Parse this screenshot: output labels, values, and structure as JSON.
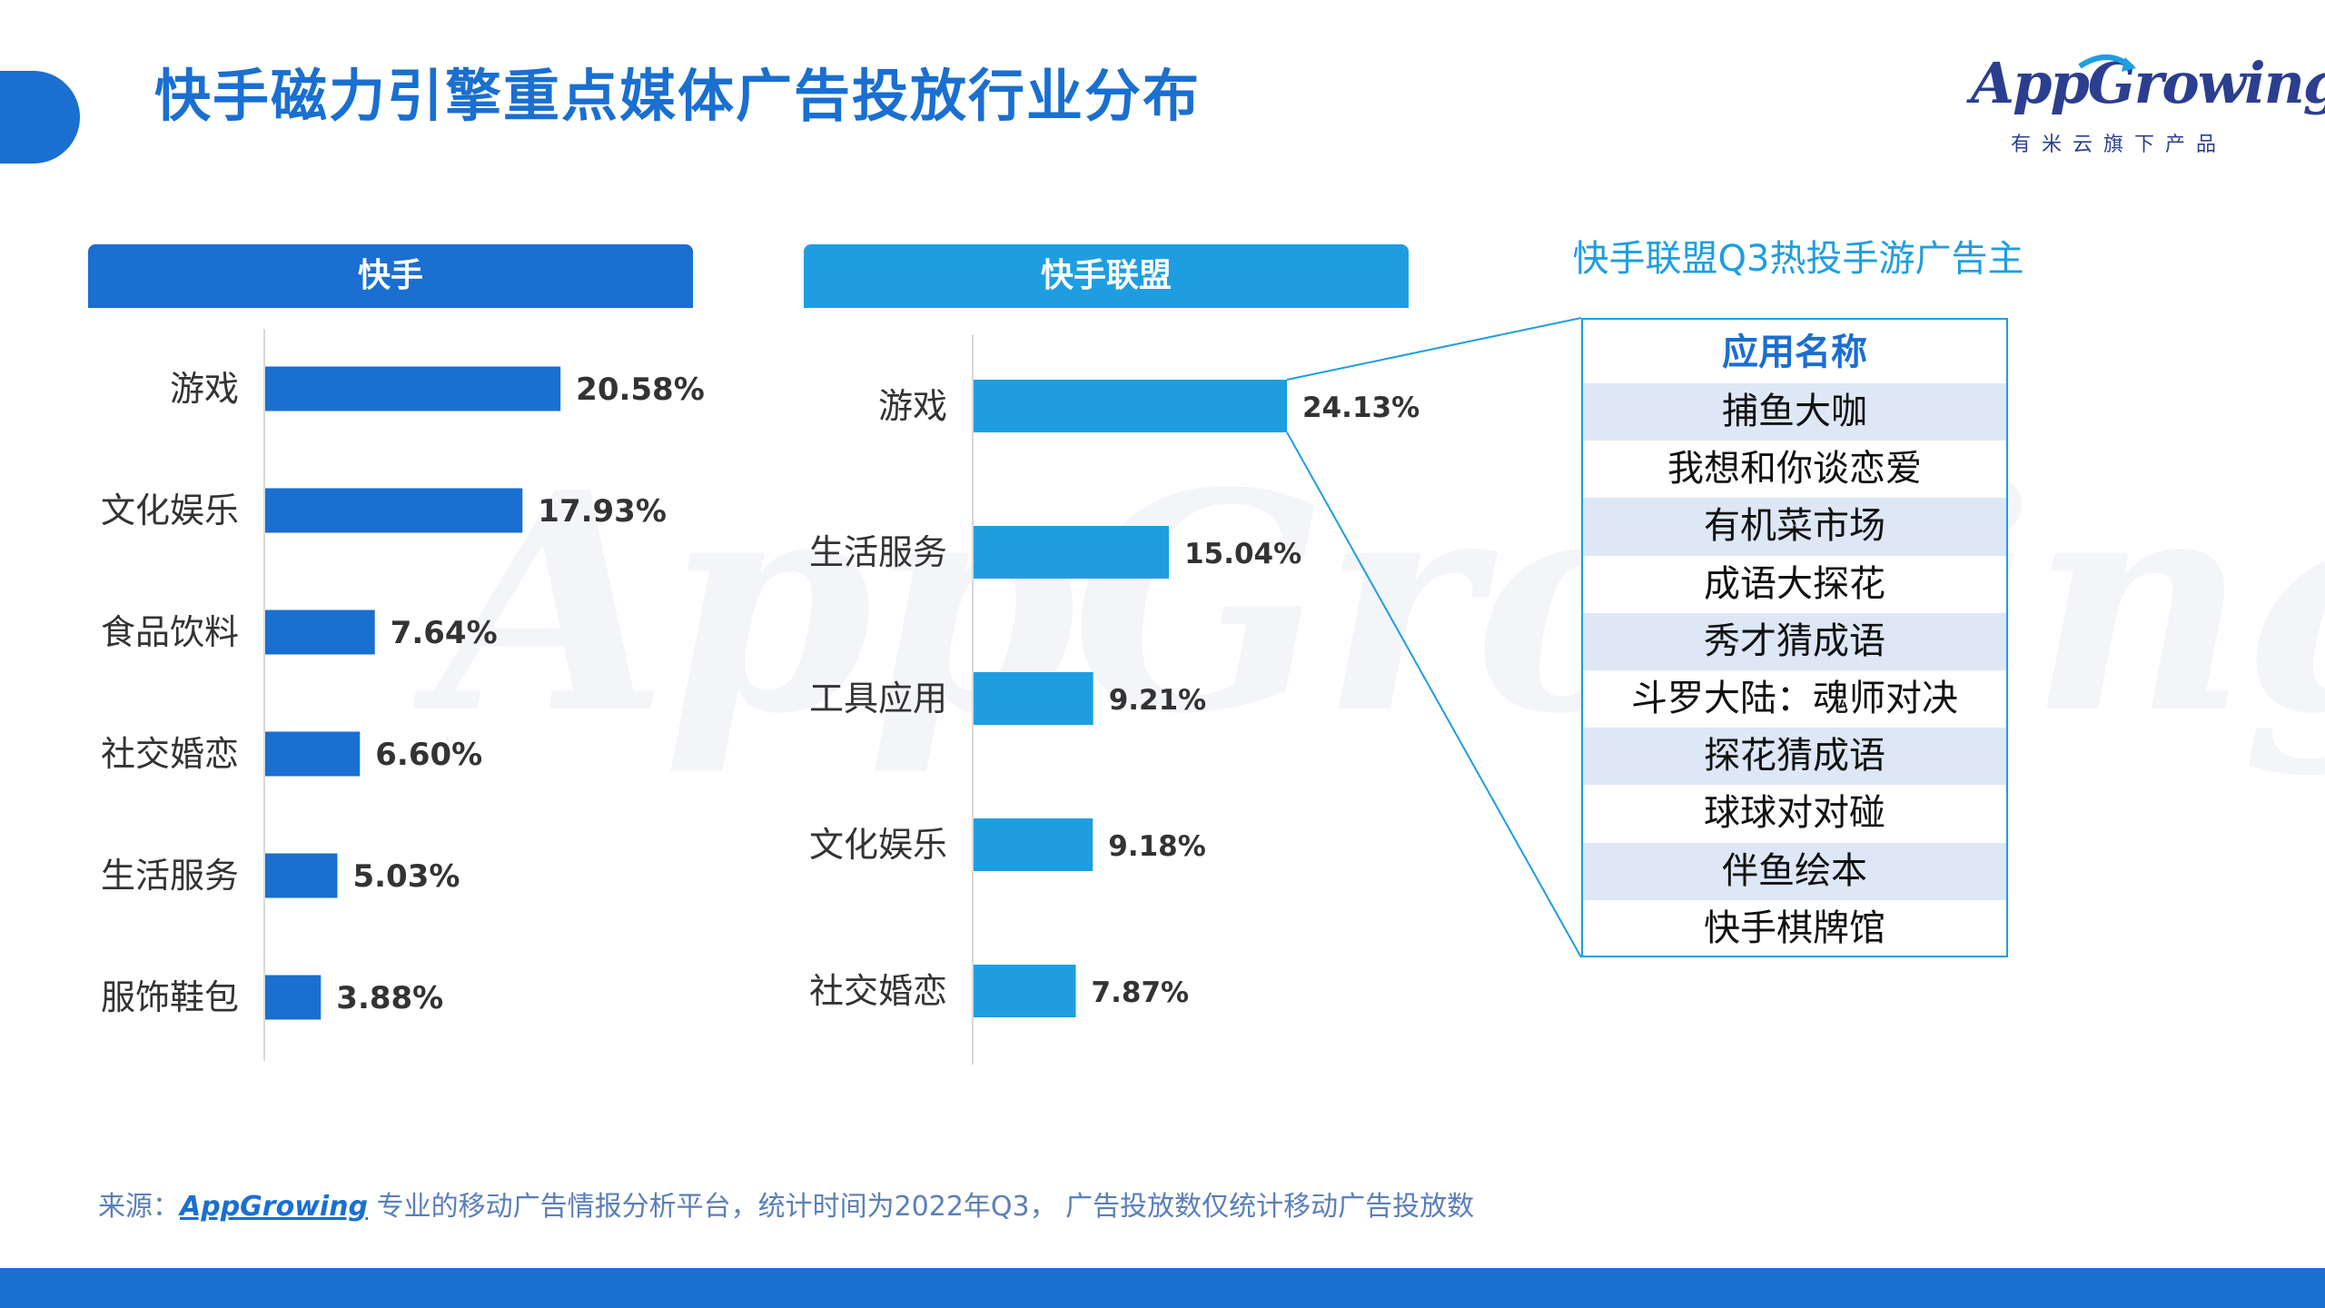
{
  "title": "快手磁力引擎重点媒体广告投放行业分布",
  "logo": {
    "wordmark": "AppGrowing",
    "subtitle": "有米云旗下产品"
  },
  "watermark": "AppGrowing",
  "colors": {
    "primary": "#1a6fd0",
    "secondary": "#1e9ee0",
    "table_alt": "#dde7f5"
  },
  "panels": {
    "kuaishou": {
      "header": "快手"
    },
    "lianmeng": {
      "header": "快手联盟"
    }
  },
  "chart_data": [
    {
      "type": "bar",
      "orientation": "horizontal",
      "title": "快手",
      "categories": [
        "游戏",
        "文化娱乐",
        "食品饮料",
        "社交婚恋",
        "生活服务",
        "服饰鞋包"
      ],
      "values": [
        20.58,
        17.93,
        7.64,
        6.6,
        5.03,
        3.88
      ],
      "labels": [
        "20.58%",
        "17.93%",
        "7.64%",
        "6.60%",
        "5.03%",
        "3.88%"
      ],
      "unit": "%",
      "color": "#1a6fd0"
    },
    {
      "type": "bar",
      "orientation": "horizontal",
      "title": "快手联盟",
      "categories": [
        "游戏",
        "生活服务",
        "工具应用",
        "文化娱乐",
        "社交婚恋"
      ],
      "values": [
        24.13,
        15.04,
        9.21,
        9.18,
        7.87
      ],
      "labels": [
        "24.13%",
        "15.04%",
        "9.21%",
        "9.18%",
        "7.87%"
      ],
      "unit": "%",
      "color": "#1e9ee0"
    }
  ],
  "top_advertisers": {
    "title": "快手联盟Q3热投手游广告主",
    "header": "应用名称",
    "apps": [
      "捕鱼大咖",
      "我想和你谈恋爱",
      "有机菜市场",
      "成语大探花",
      "秀才猜成语",
      "斗罗大陆：魂师对决",
      "探花猜成语",
      "球球对对碰",
      "伴鱼绘本",
      "快手棋牌馆"
    ]
  },
  "source": {
    "prefix": "来源：",
    "brand": "AppGrowing",
    "text": " 专业的移动广告情报分析平台，统计时间为2022年Q3， 广告投放数仅统计移动广告投放数"
  }
}
